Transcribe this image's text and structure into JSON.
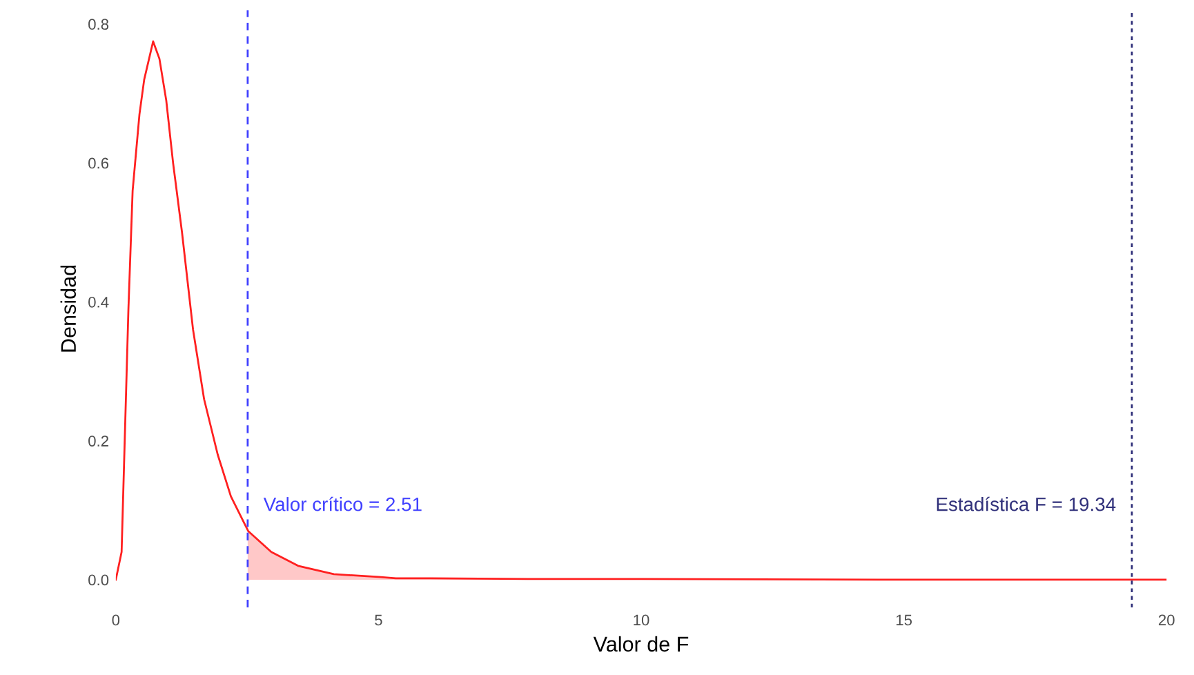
{
  "chart_data": {
    "type": "line",
    "xlabel": "Valor de F",
    "ylabel": "Densidad",
    "xlim": [
      0,
      20
    ],
    "xticks": [
      0,
      5,
      10,
      15,
      20
    ],
    "ylim": [
      -0.04,
      0.82
    ],
    "yticks": [
      {
        "value": 0,
        "label": "0.0"
      },
      0.2,
      0.4,
      0.6,
      0.8
    ],
    "grid": false,
    "legend": false,
    "series": [
      {
        "type": "area",
        "color": "#ffc8c8",
        "x": [
          2.51,
          2.96,
          3.47,
          4.15,
          5,
          5.33,
          6,
          8,
          10,
          15,
          20
        ],
        "values": [
          0.07,
          0.04,
          0.02,
          0.008,
          0.004,
          0.002,
          0.002,
          0.001,
          0.001,
          0,
          0
        ]
      },
      {
        "color": "#ff2020",
        "x": [
          0,
          0.11,
          0.24,
          0.32,
          0.45,
          0.54,
          0.71,
          0.83,
          0.96,
          1.09,
          1.26,
          1.47,
          1.68,
          1.94,
          2.19,
          2.52,
          2.96,
          3.47,
          4.15,
          5,
          5.33,
          6,
          8,
          10,
          15,
          20
        ],
        "values": [
          0,
          0.04,
          0.39,
          0.56,
          0.67,
          0.72,
          0.775,
          0.75,
          0.69,
          0.6,
          0.5,
          0.36,
          0.26,
          0.18,
          0.12,
          0.07,
          0.04,
          0.02,
          0.008,
          0.004,
          0.002,
          0.002,
          0.001,
          0.001,
          0,
          0
        ]
      }
    ],
    "ref_lines": [
      {
        "axis": "x",
        "value": 2.51,
        "label": "Valor crítico = 2.51",
        "color": "#4040ff",
        "line_style": "dashed"
      },
      {
        "axis": "x",
        "value": 19.34,
        "label": "Estadística F = 19.34",
        "color": "#30307a",
        "line_style": "dotted"
      }
    ]
  }
}
